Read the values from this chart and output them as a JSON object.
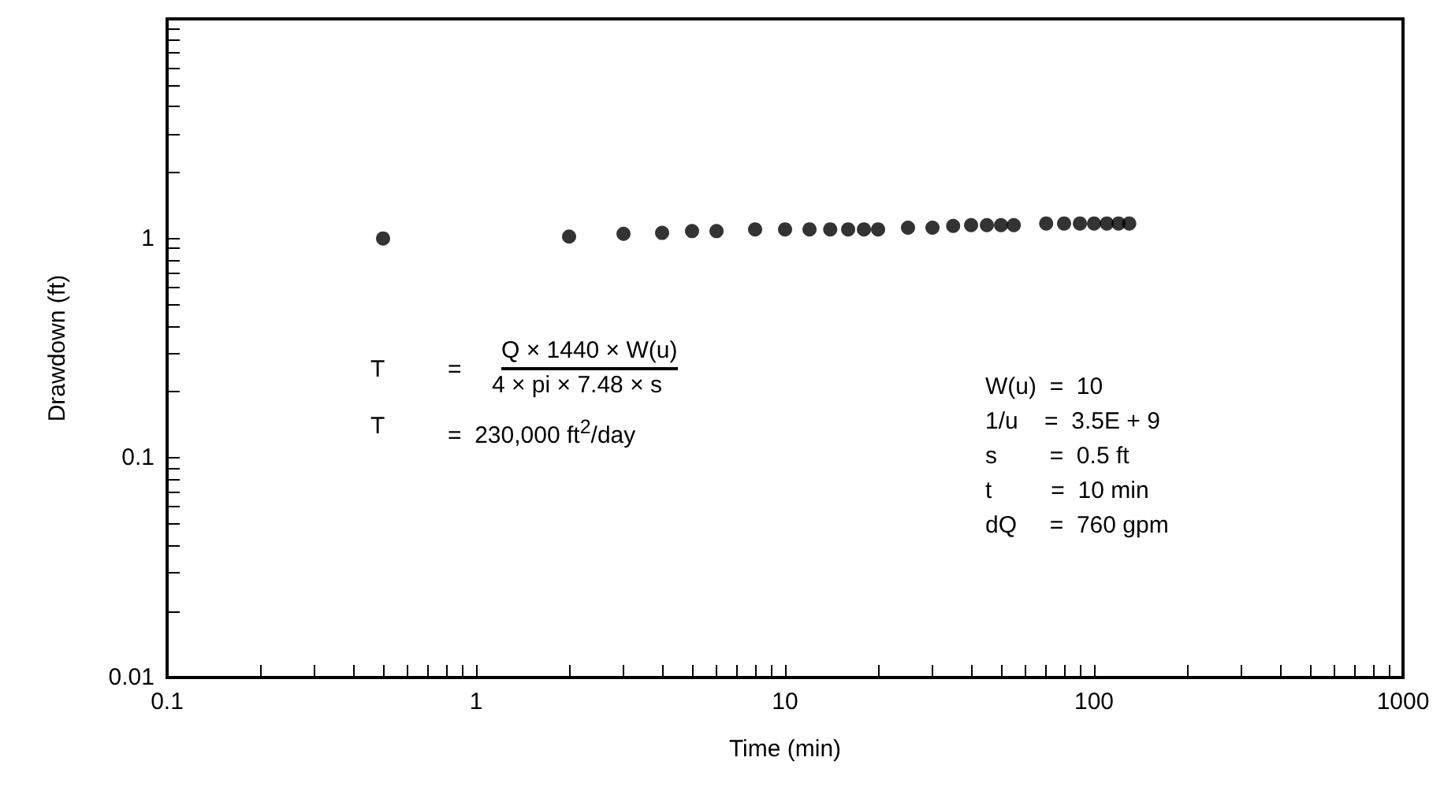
{
  "chart_data": {
    "type": "scatter",
    "xlabel": "Time (min)",
    "ylabel": "Drawdown (ft)",
    "log": "xy",
    "grid": false,
    "marker": "circle",
    "xlim": [
      0.1,
      1000
    ],
    "ylim": [
      0.01,
      10
    ],
    "xticks": [
      0.1,
      {
        "value": 0.2,
        "label": null
      },
      {
        "value": 0.3,
        "label": null
      },
      {
        "value": 0.4,
        "label": null
      },
      {
        "value": 0.5,
        "label": null
      },
      {
        "value": 0.6,
        "label": null
      },
      {
        "value": 0.7,
        "label": null
      },
      {
        "value": 0.8,
        "label": null
      },
      {
        "value": 0.9,
        "label": null
      },
      1,
      {
        "value": 2,
        "label": null
      },
      {
        "value": 3,
        "label": null
      },
      {
        "value": 4,
        "label": null
      },
      {
        "value": 5,
        "label": null
      },
      {
        "value": 6,
        "label": null
      },
      {
        "value": 7,
        "label": null
      },
      {
        "value": 8,
        "label": null
      },
      {
        "value": 9,
        "label": null
      },
      10,
      {
        "value": 20,
        "label": null
      },
      {
        "value": 30,
        "label": null
      },
      {
        "value": 40,
        "label": null
      },
      {
        "value": 50,
        "label": null
      },
      {
        "value": 60,
        "label": null
      },
      {
        "value": 70,
        "label": null
      },
      {
        "value": 80,
        "label": null
      },
      {
        "value": 90,
        "label": null
      },
      100,
      {
        "value": 200,
        "label": null
      },
      {
        "value": 300,
        "label": null
      },
      {
        "value": 400,
        "label": null
      },
      {
        "value": 500,
        "label": null
      },
      {
        "value": 600,
        "label": null
      },
      {
        "value": 700,
        "label": null
      },
      {
        "value": 800,
        "label": null
      },
      {
        "value": 900,
        "label": null
      },
      1000
    ],
    "yticks": [
      0.01,
      {
        "value": 0.02,
        "label": null
      },
      {
        "value": 0.03,
        "label": null
      },
      {
        "value": 0.04,
        "label": null
      },
      {
        "value": 0.05,
        "label": null
      },
      {
        "value": 0.06,
        "label": null
      },
      {
        "value": 0.07,
        "label": null
      },
      {
        "value": 0.08,
        "label": null
      },
      {
        "value": 0.09,
        "label": null
      },
      0.1,
      {
        "value": 0.2,
        "label": null
      },
      {
        "value": 0.3,
        "label": null
      },
      {
        "value": 0.4,
        "label": null
      },
      {
        "value": 0.5,
        "label": null
      },
      {
        "value": 0.6,
        "label": null
      },
      {
        "value": 0.7,
        "label": null
      },
      {
        "value": 0.8,
        "label": null
      },
      {
        "value": 0.9,
        "label": null
      },
      1,
      {
        "value": 2,
        "label": null
      },
      {
        "value": 3,
        "label": null
      },
      {
        "value": 4,
        "label": null
      },
      {
        "value": 5,
        "label": null
      },
      {
        "value": 6,
        "label": null
      },
      {
        "value": 7,
        "label": null
      },
      {
        "value": 8,
        "label": null
      },
      {
        "value": 9,
        "label": null
      }
    ],
    "series": [
      {
        "color": "#000000",
        "x": [
          0.5,
          2,
          3,
          4,
          5,
          6,
          8,
          10,
          12,
          14,
          16,
          18,
          20,
          25,
          30,
          35,
          40,
          45,
          50,
          55,
          70,
          80,
          90,
          100,
          110,
          120,
          130
        ],
        "values": [
          1.0,
          1.02,
          1.05,
          1.06,
          1.08,
          1.08,
          1.1,
          1.1,
          1.1,
          1.1,
          1.1,
          1.1,
          1.1,
          1.12,
          1.12,
          1.14,
          1.15,
          1.15,
          1.15,
          1.15,
          1.17,
          1.17,
          1.17,
          1.17,
          1.17,
          1.17,
          1.17
        ]
      }
    ],
    "annotations": [
      "T",
      "=",
      "Q × 1440 × W(u)",
      "4 × pi × 7.48 × s",
      "T",
      "=  230,000 ft$^{2}$/day",
      "W(u)  =  10",
      "1/u    =  3.5E + 9",
      "s        =  0.5 ft",
      "t         =  10 min",
      "dQ     =  760 gpm"
    ]
  }
}
